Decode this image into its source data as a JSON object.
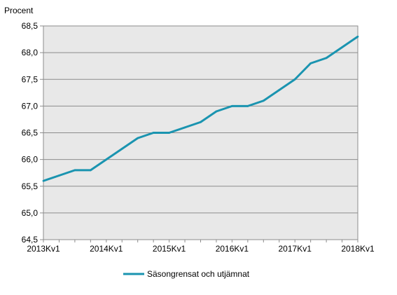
{
  "chart_data": {
    "type": "line",
    "ylabel": "Procent",
    "xlabel": "",
    "ylim": [
      64.5,
      68.5
    ],
    "y_ticks": [
      "64,5",
      "65,0",
      "65,5",
      "66,0",
      "66,5",
      "67,0",
      "67,5",
      "68,0",
      "68,5"
    ],
    "x_tick_labels": [
      "2013Kv1",
      "2014Kv1",
      "2015Kv1",
      "2016Kv1",
      "2017Kv1",
      "2018Kv1"
    ],
    "x": [
      "2013Kv1",
      "2013Kv2",
      "2013Kv3",
      "2013Kv4",
      "2014Kv1",
      "2014Kv2",
      "2014Kv3",
      "2014Kv4",
      "2015Kv1",
      "2015Kv2",
      "2015Kv3",
      "2015Kv4",
      "2016Kv1",
      "2016Kv2",
      "2016Kv3",
      "2016Kv4",
      "2017Kv1",
      "2017Kv2",
      "2017Kv3",
      "2017Kv4",
      "2018Kv1"
    ],
    "series": [
      {
        "name": "Säsongrensat och utjämnat",
        "color": "#1a94b0",
        "values": [
          65.6,
          65.7,
          65.8,
          65.8,
          66.0,
          66.2,
          66.4,
          66.5,
          66.5,
          66.6,
          66.7,
          66.9,
          67.0,
          67.0,
          67.1,
          67.3,
          67.5,
          67.8,
          67.9,
          68.1,
          68.3
        ]
      }
    ],
    "grid": true,
    "legend": "bottom",
    "plot_background": "#e8e8e8"
  }
}
